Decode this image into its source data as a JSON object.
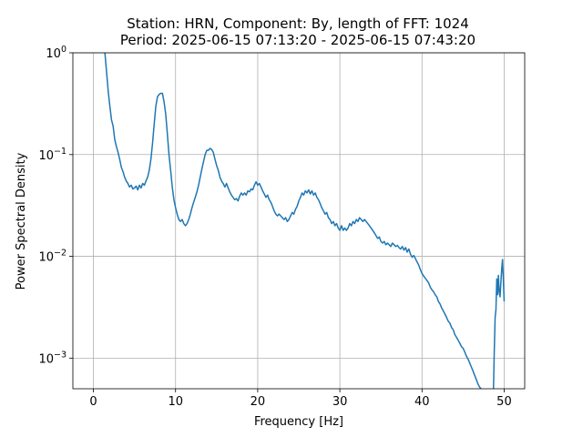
{
  "chart_data": {
    "type": "line",
    "title_line1": "Station: HRN, Component: By, length of FFT: 1024",
    "title_line2": "Period: 2025-06-15 07:13:20 - 2025-06-15 07:43:20",
    "xlabel": "Frequency [Hz]",
    "ylabel": "Power Spectral Density",
    "xlim": [
      -2.5,
      52.5
    ],
    "ylim": [
      0.0005,
      1
    ],
    "yscale": "log",
    "grid": true,
    "x_ticks": [
      0,
      10,
      20,
      30,
      40,
      50
    ],
    "x_tick_labels": [
      "0",
      "10",
      "20",
      "30",
      "40",
      "50"
    ],
    "y_ticks": [
      0.001,
      0.01,
      0.1,
      1
    ],
    "y_tick_mantissa": [
      "10",
      "10",
      "10",
      "10"
    ],
    "y_tick_exponents": [
      "−3",
      "−2",
      "−1",
      "0"
    ],
    "series": [
      {
        "color": "#1f77b4",
        "points": [
          [
            1.4,
            1.0
          ],
          [
            1.6,
            0.65
          ],
          [
            1.8,
            0.42
          ],
          [
            2.0,
            0.3
          ],
          [
            2.2,
            0.22
          ],
          [
            2.4,
            0.19
          ],
          [
            2.6,
            0.14
          ],
          [
            2.8,
            0.12
          ],
          [
            3.0,
            0.105
          ],
          [
            3.2,
            0.09
          ],
          [
            3.4,
            0.075
          ],
          [
            3.6,
            0.068
          ],
          [
            3.8,
            0.06
          ],
          [
            4.0,
            0.055
          ],
          [
            4.2,
            0.052
          ],
          [
            4.4,
            0.048
          ],
          [
            4.6,
            0.05
          ],
          [
            4.8,
            0.046
          ],
          [
            5.0,
            0.047
          ],
          [
            5.2,
            0.049
          ],
          [
            5.4,
            0.045
          ],
          [
            5.6,
            0.05
          ],
          [
            5.8,
            0.047
          ],
          [
            6.0,
            0.052
          ],
          [
            6.2,
            0.05
          ],
          [
            6.4,
            0.055
          ],
          [
            6.6,
            0.06
          ],
          [
            6.8,
            0.07
          ],
          [
            7.0,
            0.09
          ],
          [
            7.2,
            0.13
          ],
          [
            7.4,
            0.2
          ],
          [
            7.6,
            0.3
          ],
          [
            7.8,
            0.37
          ],
          [
            8.0,
            0.39
          ],
          [
            8.2,
            0.4
          ],
          [
            8.4,
            0.4
          ],
          [
            8.6,
            0.33
          ],
          [
            8.8,
            0.25
          ],
          [
            9.0,
            0.16
          ],
          [
            9.2,
            0.1
          ],
          [
            9.4,
            0.07
          ],
          [
            9.6,
            0.048
          ],
          [
            9.8,
            0.036
          ],
          [
            10.0,
            0.03
          ],
          [
            10.2,
            0.026
          ],
          [
            10.4,
            0.023
          ],
          [
            10.6,
            0.022
          ],
          [
            10.8,
            0.023
          ],
          [
            11.0,
            0.021
          ],
          [
            11.2,
            0.02
          ],
          [
            11.4,
            0.021
          ],
          [
            11.6,
            0.023
          ],
          [
            11.8,
            0.026
          ],
          [
            12.0,
            0.03
          ],
          [
            12.2,
            0.034
          ],
          [
            12.4,
            0.038
          ],
          [
            12.6,
            0.043
          ],
          [
            12.8,
            0.05
          ],
          [
            13.0,
            0.06
          ],
          [
            13.2,
            0.072
          ],
          [
            13.4,
            0.085
          ],
          [
            13.6,
            0.1
          ],
          [
            13.8,
            0.11
          ],
          [
            14.0,
            0.11
          ],
          [
            14.2,
            0.115
          ],
          [
            14.4,
            0.112
          ],
          [
            14.6,
            0.105
          ],
          [
            14.8,
            0.09
          ],
          [
            15.0,
            0.078
          ],
          [
            15.2,
            0.07
          ],
          [
            15.4,
            0.06
          ],
          [
            15.6,
            0.055
          ],
          [
            15.8,
            0.052
          ],
          [
            16.0,
            0.048
          ],
          [
            16.2,
            0.052
          ],
          [
            16.4,
            0.047
          ],
          [
            16.6,
            0.043
          ],
          [
            16.8,
            0.04
          ],
          [
            17.0,
            0.038
          ],
          [
            17.2,
            0.036
          ],
          [
            17.4,
            0.037
          ],
          [
            17.6,
            0.035
          ],
          [
            17.8,
            0.039
          ],
          [
            18.0,
            0.042
          ],
          [
            18.2,
            0.04
          ],
          [
            18.4,
            0.042
          ],
          [
            18.6,
            0.04
          ],
          [
            18.8,
            0.044
          ],
          [
            19.0,
            0.043
          ],
          [
            19.2,
            0.046
          ],
          [
            19.4,
            0.045
          ],
          [
            19.6,
            0.05
          ],
          [
            19.8,
            0.054
          ],
          [
            20.0,
            0.05
          ],
          [
            20.2,
            0.052
          ],
          [
            20.4,
            0.048
          ],
          [
            20.6,
            0.044
          ],
          [
            20.8,
            0.041
          ],
          [
            21.0,
            0.038
          ],
          [
            21.2,
            0.04
          ],
          [
            21.4,
            0.036
          ],
          [
            21.6,
            0.034
          ],
          [
            21.8,
            0.031
          ],
          [
            22.0,
            0.028
          ],
          [
            22.2,
            0.026
          ],
          [
            22.4,
            0.025
          ],
          [
            22.6,
            0.026
          ],
          [
            22.8,
            0.025
          ],
          [
            23.0,
            0.024
          ],
          [
            23.2,
            0.023
          ],
          [
            23.4,
            0.024
          ],
          [
            23.6,
            0.022
          ],
          [
            23.8,
            0.023
          ],
          [
            24.0,
            0.025
          ],
          [
            24.2,
            0.027
          ],
          [
            24.4,
            0.026
          ],
          [
            24.6,
            0.029
          ],
          [
            24.8,
            0.031
          ],
          [
            25.0,
            0.035
          ],
          [
            25.2,
            0.038
          ],
          [
            25.4,
            0.042
          ],
          [
            25.6,
            0.04
          ],
          [
            25.8,
            0.044
          ],
          [
            26.0,
            0.042
          ],
          [
            26.2,
            0.045
          ],
          [
            26.4,
            0.041
          ],
          [
            26.6,
            0.044
          ],
          [
            26.8,
            0.04
          ],
          [
            27.0,
            0.042
          ],
          [
            27.2,
            0.038
          ],
          [
            27.4,
            0.036
          ],
          [
            27.6,
            0.033
          ],
          [
            27.8,
            0.03
          ],
          [
            28.0,
            0.028
          ],
          [
            28.2,
            0.026
          ],
          [
            28.4,
            0.027
          ],
          [
            28.6,
            0.024
          ],
          [
            28.8,
            0.023
          ],
          [
            29.0,
            0.021
          ],
          [
            29.2,
            0.022
          ],
          [
            29.4,
            0.02
          ],
          [
            29.6,
            0.021
          ],
          [
            29.8,
            0.019
          ],
          [
            30.0,
            0.018
          ],
          [
            30.2,
            0.02
          ],
          [
            30.4,
            0.018
          ],
          [
            30.6,
            0.019
          ],
          [
            30.8,
            0.018
          ],
          [
            31.0,
            0.019
          ],
          [
            31.2,
            0.021
          ],
          [
            31.4,
            0.02
          ],
          [
            31.6,
            0.022
          ],
          [
            31.8,
            0.021
          ],
          [
            32.0,
            0.023
          ],
          [
            32.2,
            0.022
          ],
          [
            32.4,
            0.024
          ],
          [
            32.6,
            0.023
          ],
          [
            32.8,
            0.022
          ],
          [
            33.0,
            0.023
          ],
          [
            33.2,
            0.022
          ],
          [
            33.4,
            0.021
          ],
          [
            33.6,
            0.02
          ],
          [
            33.8,
            0.019
          ],
          [
            34.0,
            0.018
          ],
          [
            34.2,
            0.017
          ],
          [
            34.4,
            0.016
          ],
          [
            34.6,
            0.015
          ],
          [
            34.8,
            0.0155
          ],
          [
            35.0,
            0.014
          ],
          [
            35.2,
            0.0135
          ],
          [
            35.4,
            0.014
          ],
          [
            35.6,
            0.013
          ],
          [
            35.8,
            0.0135
          ],
          [
            36.0,
            0.013
          ],
          [
            36.2,
            0.0125
          ],
          [
            36.4,
            0.0135
          ],
          [
            36.6,
            0.013
          ],
          [
            36.8,
            0.0125
          ],
          [
            37.0,
            0.0128
          ],
          [
            37.2,
            0.0122
          ],
          [
            37.4,
            0.0118
          ],
          [
            37.6,
            0.0125
          ],
          [
            37.8,
            0.0115
          ],
          [
            38.0,
            0.0122
          ],
          [
            38.2,
            0.011
          ],
          [
            38.4,
            0.0118
          ],
          [
            38.6,
            0.0105
          ],
          [
            38.8,
            0.0098
          ],
          [
            39.0,
            0.0102
          ],
          [
            39.2,
            0.0095
          ],
          [
            39.4,
            0.0088
          ],
          [
            39.6,
            0.0082
          ],
          [
            39.8,
            0.0074
          ],
          [
            40.0,
            0.0068
          ],
          [
            40.2,
            0.0064
          ],
          [
            40.4,
            0.0061
          ],
          [
            40.6,
            0.0058
          ],
          [
            40.8,
            0.0055
          ],
          [
            41.0,
            0.005
          ],
          [
            41.2,
            0.0047
          ],
          [
            41.4,
            0.0045
          ],
          [
            41.6,
            0.0042
          ],
          [
            41.8,
            0.004
          ],
          [
            42.0,
            0.0036
          ],
          [
            42.2,
            0.0034
          ],
          [
            42.4,
            0.0031
          ],
          [
            42.6,
            0.0029
          ],
          [
            42.8,
            0.0027
          ],
          [
            43.0,
            0.0025
          ],
          [
            43.2,
            0.0023
          ],
          [
            43.4,
            0.0022
          ],
          [
            43.6,
            0.002
          ],
          [
            43.8,
            0.0019
          ],
          [
            44.0,
            0.0017
          ],
          [
            44.2,
            0.0016
          ],
          [
            44.4,
            0.0015
          ],
          [
            44.6,
            0.0014
          ],
          [
            44.8,
            0.0013
          ],
          [
            45.0,
            0.00125
          ],
          [
            45.2,
            0.00115
          ],
          [
            45.4,
            0.00105
          ],
          [
            45.6,
            0.00098
          ],
          [
            45.8,
            0.0009
          ],
          [
            46.0,
            0.00082
          ],
          [
            46.2,
            0.00075
          ],
          [
            46.4,
            0.00068
          ],
          [
            46.6,
            0.00062
          ],
          [
            46.8,
            0.00056
          ],
          [
            47.0,
            0.00052
          ],
          [
            47.2,
            0.0005
          ]
        ]
      },
      {
        "color": "#1f77b4",
        "points": [
          [
            48.7,
            0.0005
          ],
          [
            48.8,
            0.0012
          ],
          [
            48.9,
            0.0025
          ],
          [
            49.0,
            0.003
          ],
          [
            49.1,
            0.006
          ],
          [
            49.2,
            0.0042
          ],
          [
            49.3,
            0.0065
          ],
          [
            49.4,
            0.0045
          ],
          [
            49.5,
            0.004
          ],
          [
            49.6,
            0.0055
          ],
          [
            49.7,
            0.0075
          ],
          [
            49.8,
            0.0093
          ],
          [
            49.9,
            0.006
          ],
          [
            50.0,
            0.0036
          ]
        ]
      }
    ]
  }
}
